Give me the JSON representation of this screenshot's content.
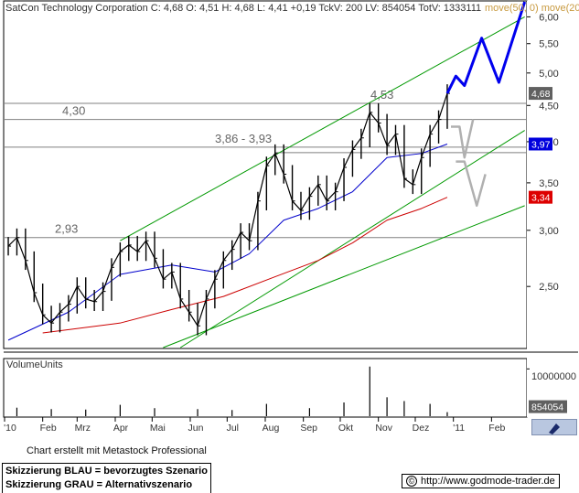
{
  "header": {
    "text": "SatCon Technology Corporation C: 4,68 O: 4,51 H: 4,68 L: 4,41 +0,19 TckV: 200 LV: 854054 TotV: 1333111",
    "ma_label": "move(50, 0) move(200"
  },
  "price_levels": [
    {
      "label": "4,30",
      "value": 4.3
    },
    {
      "label": "2,93",
      "value": 2.93
    },
    {
      "label": "3,86 - 3,93",
      "value": 3.93
    },
    {
      "label": "4,53",
      "value": 4.53
    }
  ],
  "tags": {
    "last": {
      "label": "4,68",
      "value": 4.68,
      "color": "#606060"
    },
    "ma50": {
      "label": "3,97",
      "value": 3.97,
      "color": "#0000dd"
    },
    "ma200": {
      "label": "3,34",
      "value": 3.34,
      "color": "#dd0000"
    },
    "volume": {
      "label": "854054",
      "value": 854054,
      "color": "#606060"
    }
  },
  "volume_panel": {
    "label": "VolumeUnits",
    "scale_label": "10000000",
    "max": 12000000
  },
  "footer": {
    "note": "Chart erstellt mit Metastock Professional",
    "legend_blue": "Skizzierung BLAU = bevorzugtes Szenario",
    "legend_gray": "Skizzierung GRAU = Alternativszenario",
    "source": "http://www.godmode-trader.de",
    "copyright_symbol": "©"
  },
  "colors": {
    "price": "#000000",
    "ma50": "#0000cc",
    "ma200": "#cc0000",
    "channel": "#009900",
    "scenario_blue": "#0000ee",
    "scenario_gray": "#b0b0b0",
    "level_line": "#808080"
  },
  "chart_data": {
    "type": "line",
    "title": "SatCon Technology Corporation",
    "x_ticks": [
      "'10",
      "Feb",
      "Mrz",
      "Apr",
      "Mai",
      "Jun",
      "Jul",
      "Aug",
      "Sep",
      "Okt",
      "Nov",
      "Dez",
      "'11",
      "Feb"
    ],
    "y_ticks": [
      "6,00",
      "5,50",
      "5,00",
      "4,50",
      "4,00",
      "3,50",
      "3,00",
      "2,50"
    ],
    "y_tick_values": [
      6.0,
      5.5,
      5.0,
      4.5,
      4.0,
      3.5,
      3.0,
      2.5
    ],
    "log_scale": true,
    "ylim": [
      2.05,
      6.3
    ],
    "series": [
      {
        "name": "Close",
        "points": [
          [
            "2010-01-04",
            2.85
          ],
          [
            "2010-01-11",
            2.93
          ],
          [
            "2010-01-18",
            2.72
          ],
          [
            "2010-01-25",
            2.45
          ],
          [
            "2010-02-01",
            2.28
          ],
          [
            "2010-02-08",
            2.22
          ],
          [
            "2010-02-15",
            2.3
          ],
          [
            "2010-02-22",
            2.36
          ],
          [
            "2010-03-01",
            2.5
          ],
          [
            "2010-03-08",
            2.4
          ],
          [
            "2010-03-15",
            2.38
          ],
          [
            "2010-03-22",
            2.46
          ],
          [
            "2010-03-29",
            2.66
          ],
          [
            "2010-04-05",
            2.8
          ],
          [
            "2010-04-12",
            2.86
          ],
          [
            "2010-04-19",
            2.8
          ],
          [
            "2010-04-26",
            2.9
          ],
          [
            "2010-05-03",
            2.74
          ],
          [
            "2010-05-10",
            2.56
          ],
          [
            "2010-05-17",
            2.62
          ],
          [
            "2010-05-24",
            2.4
          ],
          [
            "2010-05-31",
            2.3
          ],
          [
            "2010-06-07",
            2.2
          ],
          [
            "2010-06-14",
            2.4
          ],
          [
            "2010-06-21",
            2.56
          ],
          [
            "2010-06-28",
            2.72
          ],
          [
            "2010-07-05",
            2.82
          ],
          [
            "2010-07-12",
            2.98
          ],
          [
            "2010-07-19",
            2.9
          ],
          [
            "2010-07-26",
            3.3
          ],
          [
            "2010-08-02",
            3.7
          ],
          [
            "2010-08-09",
            3.85
          ],
          [
            "2010-08-16",
            3.6
          ],
          [
            "2010-08-23",
            3.3
          ],
          [
            "2010-08-30",
            3.2
          ],
          [
            "2010-09-06",
            3.35
          ],
          [
            "2010-09-13",
            3.48
          ],
          [
            "2010-09-20",
            3.3
          ],
          [
            "2010-09-27",
            3.4
          ],
          [
            "2010-10-04",
            3.68
          ],
          [
            "2010-10-11",
            3.9
          ],
          [
            "2010-10-18",
            4.05
          ],
          [
            "2010-10-25",
            4.4
          ],
          [
            "2010-11-01",
            4.25
          ],
          [
            "2010-11-08",
            3.95
          ],
          [
            "2010-11-15",
            4.1
          ],
          [
            "2010-11-22",
            3.55
          ],
          [
            "2010-11-29",
            3.48
          ],
          [
            "2010-12-06",
            3.8
          ],
          [
            "2010-12-13",
            4.1
          ],
          [
            "2010-12-20",
            4.3
          ],
          [
            "2010-12-27",
            4.68
          ]
        ]
      },
      {
        "name": "MA50",
        "points": [
          [
            "2010-01-04",
            2.1
          ],
          [
            "2010-02-22",
            2.3
          ],
          [
            "2010-04-05",
            2.6
          ],
          [
            "2010-05-17",
            2.68
          ],
          [
            "2010-06-21",
            2.62
          ],
          [
            "2010-07-19",
            2.78
          ],
          [
            "2010-08-16",
            3.1
          ],
          [
            "2010-09-13",
            3.22
          ],
          [
            "2010-10-11",
            3.4
          ],
          [
            "2010-11-08",
            3.8
          ],
          [
            "2010-12-06",
            3.85
          ],
          [
            "2010-12-27",
            3.97
          ]
        ]
      },
      {
        "name": "MA200",
        "points": [
          [
            "2010-02-01",
            2.15
          ],
          [
            "2010-04-05",
            2.22
          ],
          [
            "2010-05-17",
            2.32
          ],
          [
            "2010-06-28",
            2.42
          ],
          [
            "2010-08-09",
            2.58
          ],
          [
            "2010-09-13",
            2.72
          ],
          [
            "2010-10-11",
            2.88
          ],
          [
            "2010-11-08",
            3.1
          ],
          [
            "2010-12-06",
            3.22
          ],
          [
            "2010-12-27",
            3.34
          ]
        ]
      },
      {
        "name": "Volume",
        "points": [
          [
            "2010-01-11",
            1800000
          ],
          [
            "2010-02-08",
            1500000
          ],
          [
            "2010-03-08",
            1400000
          ],
          [
            "2010-04-05",
            2400000
          ],
          [
            "2010-05-03",
            1700000
          ],
          [
            "2010-06-07",
            1500000
          ],
          [
            "2010-07-05",
            1300000
          ],
          [
            "2010-08-02",
            2600000
          ],
          [
            "2010-09-06",
            1700000
          ],
          [
            "2010-10-04",
            2900000
          ],
          [
            "2010-10-25",
            10500000
          ],
          [
            "2010-11-08",
            4000000
          ],
          [
            "2010-11-22",
            3200000
          ],
          [
            "2010-12-13",
            2600000
          ],
          [
            "2010-12-27",
            854054
          ]
        ]
      }
    ],
    "channel_lines": [
      {
        "from": [
          "2010-04-05",
          2.9
        ],
        "to": [
          "2011-02-28",
          6.0
        ]
      },
      {
        "from": [
          "2010-05-24",
          2.05
        ],
        "to": [
          "2011-02-28",
          4.15
        ]
      },
      {
        "from": [
          "2010-05-10",
          2.05
        ],
        "to": [
          "2011-02-28",
          3.25
        ]
      }
    ],
    "scenario_blue": [
      [
        "2010-12-27",
        4.68
      ],
      [
        "2011-01-03",
        4.95
      ],
      [
        "2011-01-10",
        4.8
      ],
      [
        "2011-01-24",
        5.6
      ],
      [
        "2011-02-07",
        4.85
      ],
      [
        "2011-02-28",
        6.3
      ]
    ],
    "scenario_gray": [
      [
        [
          "2010-12-30",
          4.2
        ],
        [
          "2011-01-06",
          4.2
        ],
        [
          "2011-01-10",
          3.8
        ],
        [
          "2011-01-17",
          4.3
        ]
      ],
      [
        [
          "2011-01-03",
          3.75
        ],
        [
          "2011-01-10",
          3.75
        ],
        [
          "2011-01-20",
          3.25
        ],
        [
          "2011-01-27",
          3.6
        ]
      ]
    ]
  }
}
